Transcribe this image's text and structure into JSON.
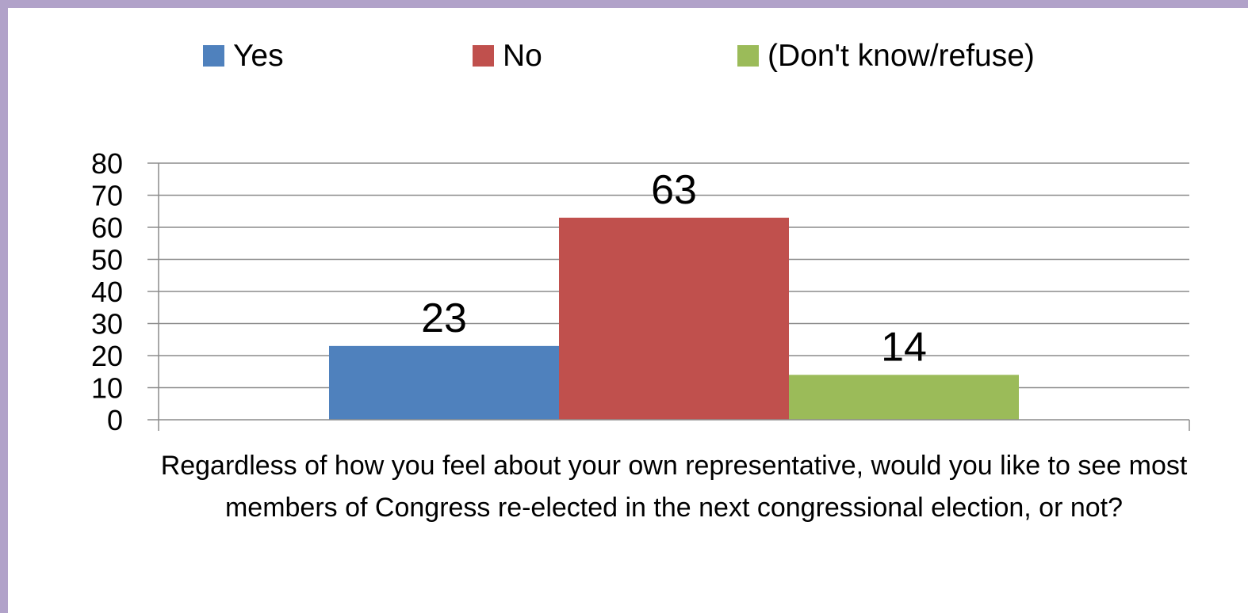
{
  "chart_data": {
    "type": "bar",
    "categories": [
      "Regardless of how you feel about your own representative, would you like to see most members of Congress re-elected in the next congressional election, or not?"
    ],
    "series": [
      {
        "name": "Yes",
        "color": "#4f81bd",
        "values": [
          23
        ]
      },
      {
        "name": "No",
        "color": "#c0504d",
        "values": [
          63
        ]
      },
      {
        "name": "(Don't know/refuse)",
        "color": "#9bbb59",
        "values": [
          14
        ]
      }
    ],
    "ylim": [
      0,
      80
    ],
    "yticks": [
      0,
      10,
      20,
      30,
      40,
      50,
      60,
      70,
      80
    ],
    "grid": true,
    "legend": "top",
    "data_labels": true,
    "title": "",
    "xlabel": "",
    "ylabel": ""
  }
}
